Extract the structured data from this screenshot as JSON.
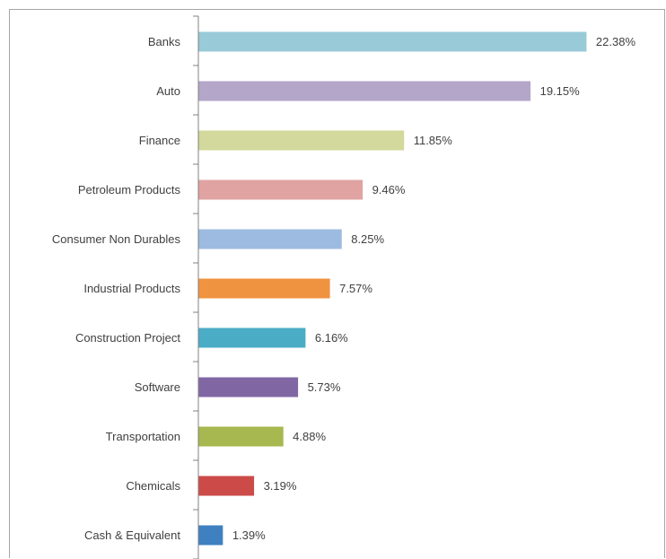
{
  "chart_data": {
    "type": "bar",
    "orientation": "horizontal",
    "title": "",
    "xlabel": "",
    "ylabel": "",
    "grid": false,
    "legend": "none",
    "unit": "%",
    "categories": [
      "Banks",
      "Auto",
      "Finance",
      "Petroleum Products",
      "Consumer Non Durables",
      "Industrial Products",
      "Construction Project",
      "Software",
      "Transportation",
      "Chemicals",
      "Cash & Equivalent"
    ],
    "values": [
      22.38,
      19.15,
      11.85,
      9.46,
      8.25,
      7.57,
      6.16,
      5.73,
      4.88,
      3.19,
      1.39
    ],
    "value_labels": [
      "22.38%",
      "19.15%",
      "11.85%",
      "9.46%",
      "8.25%",
      "7.57%",
      "6.16%",
      "5.73%",
      "4.88%",
      "3.19%",
      "1.39%"
    ],
    "colors": [
      "#99cad8",
      "#b3a6c8",
      "#d3d89c",
      "#e0a3a1",
      "#9dbbe0",
      "#ef9340",
      "#4bacc6",
      "#8067a4",
      "#a6b84f",
      "#cc4b49",
      "#3f81c0"
    ]
  }
}
